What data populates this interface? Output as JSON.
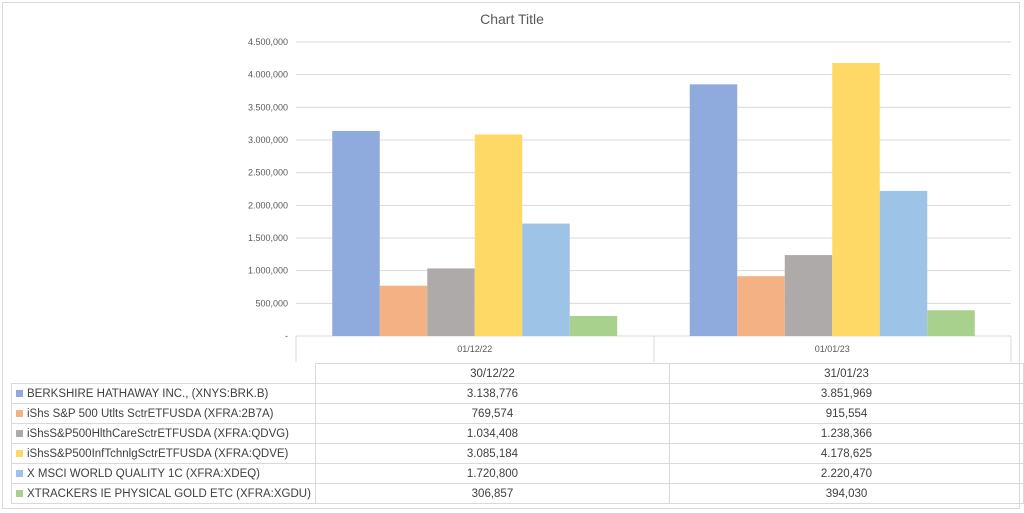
{
  "chart_data": {
    "type": "bar",
    "title": "Chart Title",
    "categories": [
      "01/12/22",
      "01/01/23"
    ],
    "ylim": [
      0,
      4500000
    ],
    "yticks": [
      0,
      500000,
      1000000,
      1500000,
      2000000,
      2500000,
      3000000,
      3500000,
      4000000,
      4500000
    ],
    "ytick_labels": [
      "-",
      "500,000",
      "1.000,000",
      "1.500,000",
      "2.000,000",
      "2.500,000",
      "3.000,000",
      "3.500,000",
      "4.000,000",
      "4.500,000"
    ],
    "gridlines": true,
    "legend_position": "data table below chart",
    "series": [
      {
        "name": "BERKSHIRE HATHAWAY INC., (XNYS:BRK.B)",
        "color": "#8faadc",
        "values": [
          3138776,
          3851969
        ],
        "labels": [
          "3.138,776",
          "3.851,969"
        ]
      },
      {
        "name": "iShs S&P 500 Utlts SctrETFUSDA (XFRA:2B7A)",
        "color": "#f4b183",
        "values": [
          769574,
          915554
        ],
        "labels": [
          "769,574",
          "915,554"
        ]
      },
      {
        "name": "iShsS&P500HlthCareSctrETFUSDA (XFRA:QDVG)",
        "color": "#aeaaaa",
        "values": [
          1034408,
          1238366
        ],
        "labels": [
          "1.034,408",
          "1.238,366"
        ]
      },
      {
        "name": "iShsS&P500InfTchnlgSctrETFUSDA (XFRA:QDVE)",
        "color": "#ffd966",
        "values": [
          3085184,
          4178625
        ],
        "labels": [
          "3.085,184",
          "4.178,625"
        ]
      },
      {
        "name": "X MSCI WORLD QUALITY 1C (XFRA:XDEQ)",
        "color": "#9dc3e6",
        "values": [
          1720800,
          2220470
        ],
        "labels": [
          "1.720,800",
          "2.220,470"
        ]
      },
      {
        "name": "XTRACKERS IE PHYSICAL GOLD ETC (XFRA:XGDU)",
        "color": "#a9d18e",
        "values": [
          306857,
          394030
        ],
        "labels": [
          "306,857",
          "394,030"
        ]
      }
    ]
  },
  "table": {
    "headers": [
      "30/12/22",
      "31/01/23"
    ]
  }
}
